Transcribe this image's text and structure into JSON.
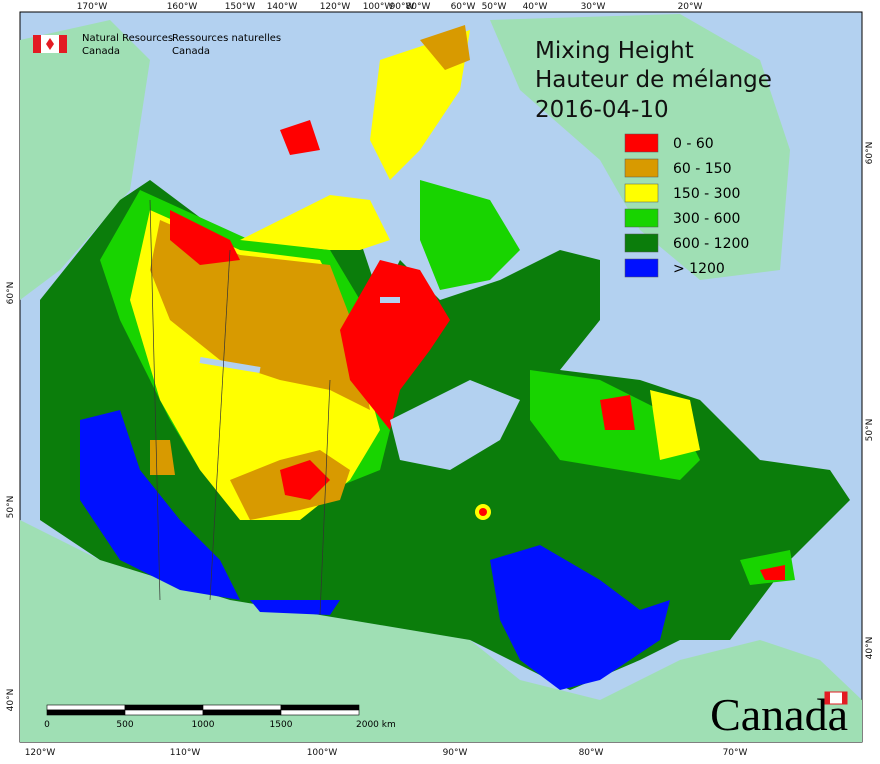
{
  "agency": {
    "en_line1": "Natural Resources",
    "en_line2": "Canada",
    "fr_line1": "Ressources naturelles",
    "fr_line2": "Canada"
  },
  "title": {
    "line1": "Mixing Height",
    "line2": "Hauteur de mélange",
    "date": "2016-04-10"
  },
  "legend": [
    {
      "label": "0 - 60",
      "color": "#ff0000"
    },
    {
      "label": "60 - 150",
      "color": "#d89a00"
    },
    {
      "label": "150 - 300",
      "color": "#ffff00"
    },
    {
      "label": "300 - 600",
      "color": "#18d400"
    },
    {
      "label": "600 - 1200",
      "color": "#0b7d0b"
    },
    {
      "label": "> 1200",
      "color": "#0010ff"
    }
  ],
  "graticule": {
    "top": [
      "170°W",
      "160°W",
      "150°W",
      "140°W",
      "120°W",
      "100°W",
      "90°W",
      "80°W",
      "60°W",
      "50°W",
      "40°W",
      "30°W",
      "20°W"
    ],
    "bottom": [
      "120°W",
      "110°W",
      "100°W",
      "90°W",
      "80°W",
      "70°W"
    ],
    "left": [
      "60°N",
      "50°N",
      "40°N"
    ],
    "right": [
      "60°N",
      "50°N",
      "40°N"
    ]
  },
  "scale_bar": {
    "labels": [
      "0",
      "500",
      "1000",
      "1500",
      "2000 km"
    ]
  },
  "wordmark": "Canada"
}
